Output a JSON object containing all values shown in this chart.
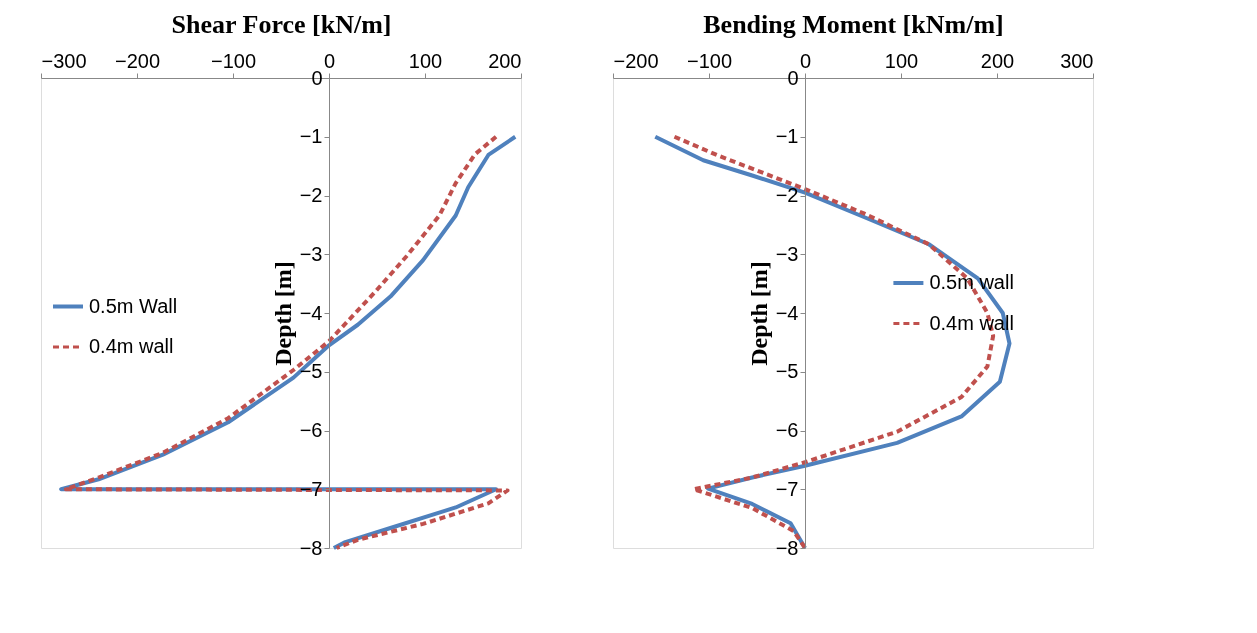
{
  "chart_data": [
    {
      "type": "line",
      "xlabel": "Shear Force [kN/m]",
      "ylabel": "Depth [m]",
      "xlim": [
        -300,
        200
      ],
      "xticks": [
        -300,
        -200,
        -100,
        0,
        100,
        200
      ],
      "ylim": [
        -8,
        0
      ],
      "yticks": [
        -8,
        -7,
        -6,
        -5,
        -4,
        -3,
        -2,
        -1,
        0
      ],
      "grid": false,
      "legend": "left",
      "marker": "none",
      "series": [
        {
          "name": "0.5m Wall",
          "color": "#4f81bd",
          "line_style": "solid",
          "x": [
            194,
            166,
            145,
            132,
            98,
            64,
            30,
            0,
            -37,
            -105,
            -173,
            -240,
            -279,
            174,
            132,
            64,
            17,
            5
          ],
          "values": [
            -1,
            -1.31,
            -1.86,
            -2.34,
            -3.1,
            -3.72,
            -4.2,
            -4.55,
            -5.1,
            -5.86,
            -6.41,
            -6.83,
            -7,
            -7,
            -7.31,
            -7.66,
            -7.9,
            -8
          ]
        },
        {
          "name": "0.4m wall",
          "color": "#c0504d",
          "line_style": "dashed",
          "x": [
            174,
            152,
            132,
            115,
            81,
            47,
            0,
            -37,
            -105,
            -173,
            -240,
            -274,
            186,
            166,
            98,
            30,
            8
          ],
          "values": [
            -1,
            -1.3,
            -1.79,
            -2.34,
            -3.03,
            -3.66,
            -4.48,
            -4.97,
            -5.79,
            -6.38,
            -6.8,
            -7,
            -7.02,
            -7.24,
            -7.59,
            -7.86,
            -8
          ]
        }
      ]
    },
    {
      "type": "line",
      "xlabel": "Bending Moment [kNm/m]",
      "ylabel": "Depth [m]",
      "xlim": [
        -200,
        300
      ],
      "xticks": [
        -200,
        -100,
        0,
        100,
        200,
        300
      ],
      "ylim": [
        -8,
        0
      ],
      "yticks": [
        -8,
        -7,
        -6,
        -5,
        -4,
        -3,
        -2,
        -1,
        0
      ],
      "grid": false,
      "legend": "right",
      "marker": "none",
      "series": [
        {
          "name": "0.5m wall",
          "color": "#4f81bd",
          "line_style": "solid",
          "x": [
            -156,
            -106,
            -55,
            0,
            62,
            129,
            180,
            206,
            213,
            203,
            163,
            96,
            0,
            -55,
            -101,
            -55,
            -15,
            0
          ],
          "values": [
            -1,
            -1.4,
            -1.66,
            -1.95,
            -2.37,
            -2.83,
            -3.41,
            -4,
            -4.52,
            -5.17,
            -5.76,
            -6.21,
            -6.6,
            -6.8,
            -6.99,
            -7.25,
            -7.58,
            -8
          ]
        },
        {
          "name": "0.4m wall",
          "color": "#c0504d",
          "line_style": "dashed",
          "x": [
            -136,
            -89,
            0,
            62,
            129,
            169,
            190,
            196,
            190,
            163,
            96,
            0,
            -55,
            -116,
            -55,
            -12,
            0
          ],
          "values": [
            -1,
            -1.33,
            -1.89,
            -2.31,
            -2.83,
            -3.41,
            -4,
            -4.39,
            -4.91,
            -5.43,
            -6.02,
            -6.54,
            -6.8,
            -7,
            -7.32,
            -7.71,
            -8
          ]
        }
      ]
    }
  ]
}
